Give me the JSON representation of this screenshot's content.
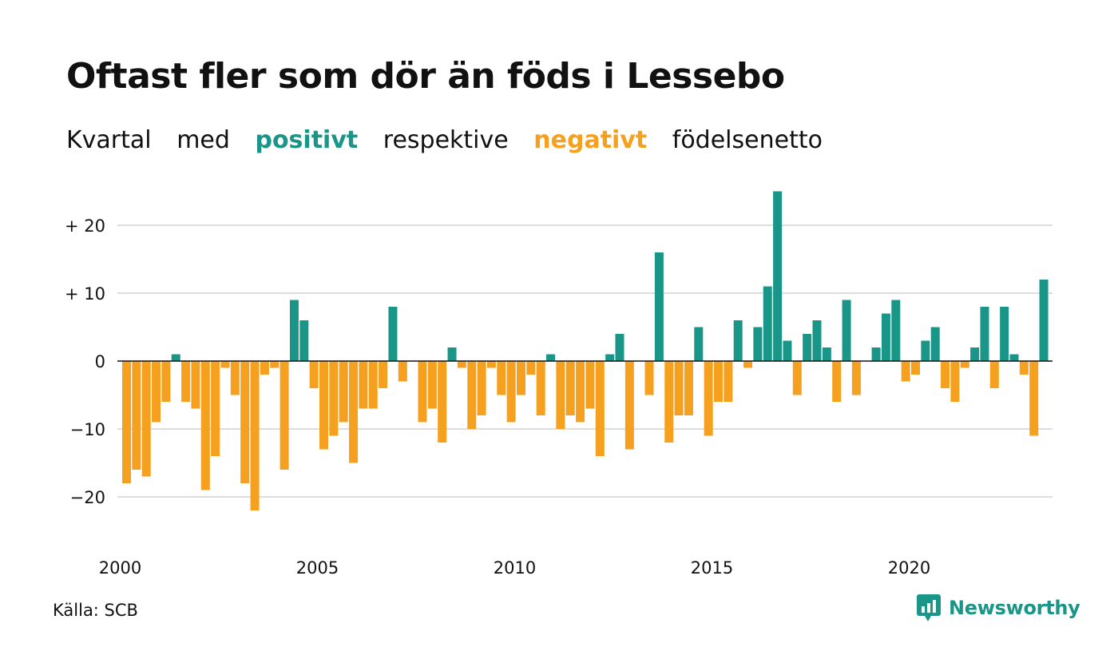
{
  "title": "Oftast fler som dör än föds i Lessebo",
  "subtitle": {
    "w1": "Kvartal",
    "w2": "med",
    "positive": "positivt",
    "w3": "respektive",
    "negative": "negativt",
    "w4": "födelsenetto"
  },
  "source": "Källa: SCB",
  "brand": "Newsworthy",
  "colors": {
    "positive": "#1a9688",
    "negative": "#f5a01e",
    "grid": "#dddddd",
    "zero_line": "#111111"
  },
  "chart_data": {
    "type": "bar",
    "title": "Oftast fler som dör än föds i Lessebo",
    "subtitle": "Kvartal med positivt respektive negativt födelsenetto",
    "ylim": [
      -25,
      26
    ],
    "y_ticks": [
      {
        "value": 20,
        "label": "+ 20"
      },
      {
        "value": 10,
        "label": "+ 10"
      },
      {
        "value": 0,
        "label": "0"
      },
      {
        "value": -10,
        "label": "−10"
      },
      {
        "value": -20,
        "label": "−20"
      }
    ],
    "x_ticks": [
      {
        "value": 2000,
        "label": "2000"
      },
      {
        "value": 2005,
        "label": "2005"
      },
      {
        "value": 2010,
        "label": "2010"
      },
      {
        "value": 2015,
        "label": "2015"
      },
      {
        "value": 2020,
        "label": "2020"
      }
    ],
    "grid": true,
    "legend": "none",
    "start_year": 2000,
    "periods_per_year": 4,
    "values": [
      -18,
      -16,
      -17,
      -9,
      -6,
      1,
      -6,
      -7,
      -19,
      -14,
      -1,
      -5,
      -18,
      -22,
      -2,
      -1,
      -16,
      9,
      6,
      -4,
      -13,
      -11,
      -9,
      -15,
      -7,
      -7,
      -4,
      8,
      -3,
      0,
      -9,
      -7,
      -12,
      2,
      -1,
      -10,
      -8,
      -1,
      -5,
      -9,
      -5,
      -2,
      -8,
      1,
      -10,
      -8,
      -9,
      -7,
      -14,
      1,
      4,
      -13,
      0,
      -5,
      16,
      -12,
      -8,
      -8,
      5,
      -11,
      -6,
      -6,
      6,
      -1,
      5,
      11,
      25,
      3,
      -5,
      4,
      6,
      2,
      -6,
      9,
      -5,
      0,
      2,
      7,
      9,
      -3,
      -2,
      3,
      5,
      -4,
      -6,
      -1,
      2,
      8,
      -4,
      8,
      1,
      -2,
      -11,
      12
    ]
  }
}
